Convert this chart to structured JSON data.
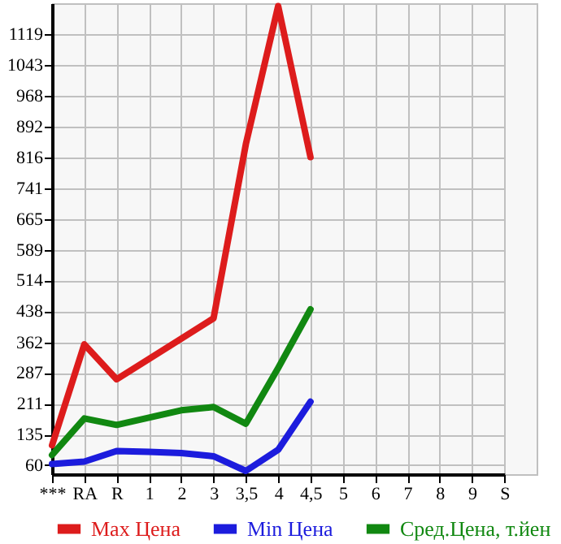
{
  "chart_data": {
    "type": "line",
    "categories": [
      "***",
      "RA",
      "R",
      "1",
      "2",
      "3",
      "3,5",
      "4",
      "4,5",
      "5",
      "6",
      "7",
      "8",
      "9",
      "S"
    ],
    "series": [
      {
        "name": "Max Цена",
        "color": "#dd1c1c",
        "values": [
          109,
          357,
          271,
          321,
          371,
          421,
          849,
          1188,
          817,
          null,
          null,
          null,
          null,
          null,
          null
        ]
      },
      {
        "name": "Min Цена",
        "color": "#1c1cdd",
        "values": [
          63,
          69,
          95,
          93,
          90,
          82,
          46,
          98,
          216,
          null,
          null,
          null,
          null,
          null,
          null
        ]
      },
      {
        "name": "Сред.Цена, т.йен",
        "color": "#118811",
        "values": [
          85,
          175,
          159,
          177,
          195,
          203,
          162,
          299,
          443,
          null,
          null,
          null,
          null,
          null,
          null
        ]
      }
    ],
    "ylim": [
      38,
      1195
    ],
    "yticks": [
      60,
      135,
      211,
      287,
      362,
      438,
      514,
      589,
      665,
      741,
      816,
      892,
      968,
      1043,
      1119
    ],
    "grid": true,
    "legend": "bottom",
    "marker": "none",
    "line_style": "solid"
  }
}
